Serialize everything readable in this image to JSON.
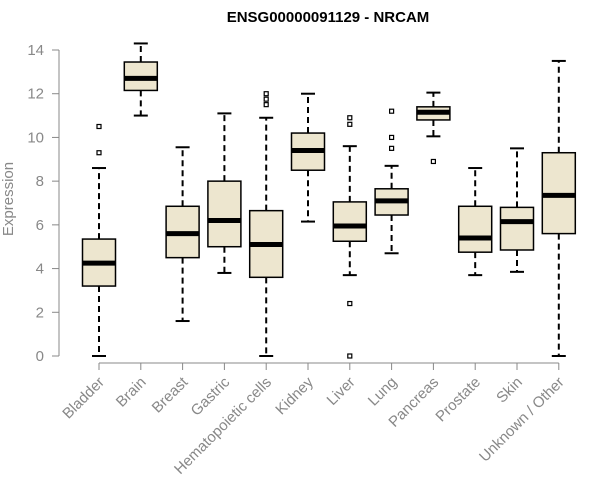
{
  "chart_data": {
    "type": "boxplot",
    "title": "ENSG00000091129 - NRCAM",
    "xlabel": "",
    "ylabel": "Expression",
    "ylim": [
      0,
      14
    ],
    "yticks": [
      0,
      2,
      4,
      6,
      8,
      10,
      12,
      14
    ],
    "grid": false,
    "colors": {
      "box_fill": "#ede6cf",
      "median": "#000000",
      "axis": "#888888",
      "text": "#888888"
    },
    "categories": [
      "Bladder",
      "Brain",
      "Breast",
      "Gastric",
      "Hematopoietic cells",
      "Kidney",
      "Liver",
      "Lung",
      "Pancreas",
      "Prostate",
      "Skin",
      "Unknown / Other"
    ],
    "boxes": [
      {
        "category": "Bladder",
        "whisker_low": 0.0,
        "q1": 3.2,
        "median": 4.25,
        "q3": 5.35,
        "whisker_high": 8.6,
        "outliers": [
          9.3,
          10.5
        ]
      },
      {
        "category": "Brain",
        "whisker_low": 11.0,
        "q1": 12.15,
        "median": 12.7,
        "q3": 13.45,
        "whisker_high": 14.3,
        "outliers": []
      },
      {
        "category": "Breast",
        "whisker_low": 1.6,
        "q1": 4.5,
        "median": 5.6,
        "q3": 6.85,
        "whisker_high": 9.55,
        "outliers": []
      },
      {
        "category": "Gastric",
        "whisker_low": 3.8,
        "q1": 5.0,
        "median": 6.2,
        "q3": 8.0,
        "whisker_high": 11.1,
        "outliers": []
      },
      {
        "category": "Hematopoietic cells",
        "whisker_low": 0.0,
        "q1": 3.6,
        "median": 5.1,
        "q3": 6.65,
        "whisker_high": 10.9,
        "outliers": [
          11.5,
          11.75,
          12.0
        ]
      },
      {
        "category": "Kidney",
        "whisker_low": 6.15,
        "q1": 8.5,
        "median": 9.4,
        "q3": 10.2,
        "whisker_high": 12.0,
        "outliers": []
      },
      {
        "category": "Liver",
        "whisker_low": 3.7,
        "q1": 5.25,
        "median": 5.95,
        "q3": 7.05,
        "whisker_high": 9.6,
        "outliers": [
          0.0,
          2.4,
          10.6,
          10.9
        ]
      },
      {
        "category": "Lung",
        "whisker_low": 4.7,
        "q1": 6.45,
        "median": 7.1,
        "q3": 7.65,
        "whisker_high": 8.7,
        "outliers": [
          9.5,
          10.0,
          11.2
        ]
      },
      {
        "category": "Pancreas",
        "whisker_low": 10.05,
        "q1": 10.8,
        "median": 11.15,
        "q3": 11.4,
        "whisker_high": 12.05,
        "outliers": [
          8.9
        ]
      },
      {
        "category": "Prostate",
        "whisker_low": 3.7,
        "q1": 4.75,
        "median": 5.4,
        "q3": 6.85,
        "whisker_high": 8.6,
        "outliers": []
      },
      {
        "category": "Skin",
        "whisker_low": 3.85,
        "q1": 4.85,
        "median": 6.15,
        "q3": 6.8,
        "whisker_high": 9.5,
        "outliers": []
      },
      {
        "category": "Unknown / Other",
        "whisker_low": 0.0,
        "q1": 5.6,
        "median": 7.35,
        "q3": 9.3,
        "whisker_high": 13.5,
        "outliers": []
      }
    ]
  }
}
